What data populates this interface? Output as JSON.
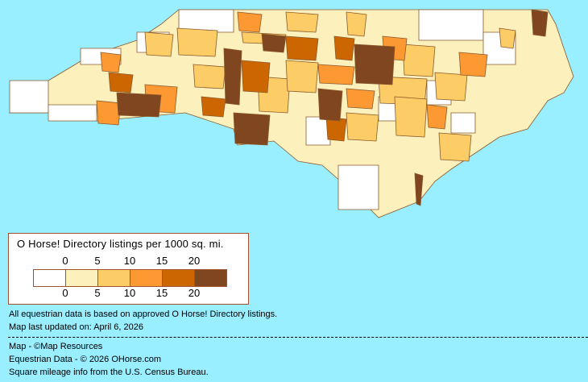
{
  "colors": {
    "background": "#99EEFF",
    "border": "#A0522D",
    "county_border": "#8B5A2B"
  },
  "legend": {
    "title": "O Horse! Directory listings per 1000 sq. mi.",
    "top_ticks": [
      "0",
      "5",
      "10",
      "15",
      "20"
    ],
    "bottom_ticks": [
      "0",
      "5",
      "10",
      "15",
      "20"
    ],
    "classes": [
      {
        "range": "0",
        "color": "#FFFFFF"
      },
      {
        "range": "0-5",
        "color": "#FCF0BC"
      },
      {
        "range": "5-10",
        "color": "#FCCC66"
      },
      {
        "range": "10-15",
        "color": "#FC9933"
      },
      {
        "range": "15-20",
        "color": "#CC6600"
      },
      {
        "range": "20+",
        "color": "#7F4620"
      }
    ]
  },
  "notes": {
    "data_basis": "All equestrian data is based on approved O Horse! Directory listings.",
    "updated": "Map last updated on: April 6, 2026",
    "map_credit": "Map - ©Map Resources",
    "data_credit": "Equestrian Data - © 2026 OHorse.com",
    "census_credit": "Square mileage info from the U.S. Census Bureau."
  }
}
